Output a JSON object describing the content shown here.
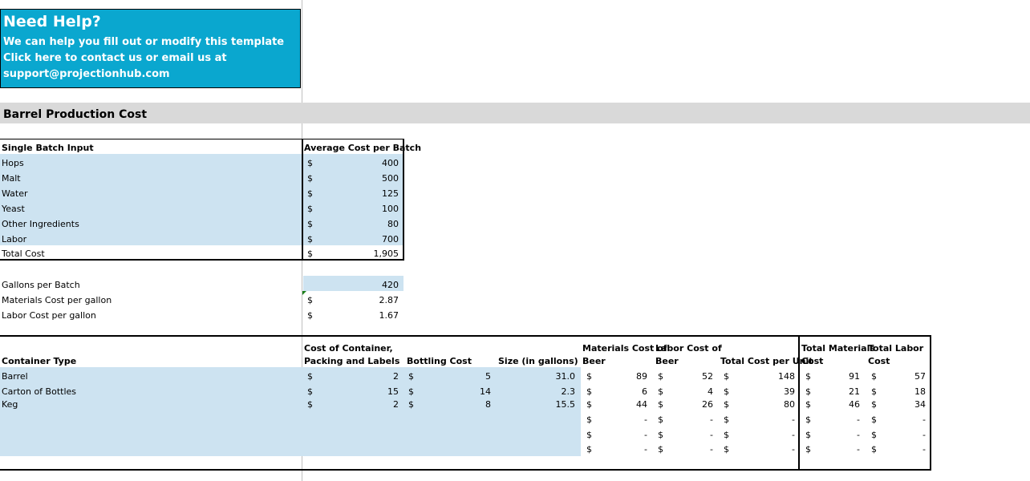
{
  "help": {
    "title": "Need Help?",
    "line1": "We can help you fill out or modify this template",
    "line2": "Click here to contact us or email us at",
    "line3": "support@projectionhub.com"
  },
  "section_title": "Barrel Production Cost",
  "batch": {
    "header_input": "Single Batch Input",
    "header_cost": "Average Cost per Batch",
    "rows": [
      {
        "label": "Hops",
        "cur": "$",
        "value": "400"
      },
      {
        "label": "Malt",
        "cur": "$",
        "value": "500"
      },
      {
        "label": "Water",
        "cur": "$",
        "value": "125"
      },
      {
        "label": "Yeast",
        "cur": "$",
        "value": "100"
      },
      {
        "label": "Other Ingredients",
        "cur": "$",
        "value": "80"
      },
      {
        "label": "Labor",
        "cur": "$",
        "value": "700"
      }
    ],
    "total": {
      "label": "Total Cost",
      "cur": "$",
      "value": "1,905"
    }
  },
  "gallons": {
    "gallons_label": "Gallons per Batch",
    "gallons_value": "420",
    "materials_label": "Materials Cost per gallon",
    "materials_cur": "$",
    "materials_value": "2.87",
    "labor_label": "Labor Cost per gallon",
    "labor_cur": "$",
    "labor_value": "1.67"
  },
  "containers": {
    "headers": {
      "type": "Container Type",
      "cost_line1": "Cost of Container,",
      "cost_line2": "Packing and Labels",
      "bottling": "Bottling Cost",
      "size": "Size (in gallons)",
      "materials_line1": "Materials Cost of",
      "materials_line2": "Beer",
      "labor_line1": "Labor Cost of",
      "labor_line2": "Beer",
      "total_unit": "Total Cost per Unit",
      "total_mat_line1": "Total Materials",
      "total_mat_line2": "Cost",
      "total_lab_line1": "Total Labor",
      "total_lab_line2": "Cost"
    },
    "rows": [
      {
        "type": "Barrel",
        "cost_cur": "$",
        "cost": "2",
        "bot_cur": "$",
        "bot": "5",
        "size": "31.0",
        "mat_cur": "$",
        "mat": "89",
        "lab_cur": "$",
        "lab": "52",
        "tot_cur": "$",
        "tot": "148",
        "tm_cur": "$",
        "tm": "91",
        "tl_cur": "$",
        "tl": "57"
      },
      {
        "type": "Carton of Bottles",
        "cost_cur": "$",
        "cost": "15",
        "bot_cur": "$",
        "bot": "14",
        "size": "2.3",
        "mat_cur": "$",
        "mat": "6",
        "lab_cur": "$",
        "lab": "4",
        "tot_cur": "$",
        "tot": "39",
        "tm_cur": "$",
        "tm": "21",
        "tl_cur": "$",
        "tl": "18"
      },
      {
        "type": "Keg",
        "cost_cur": "$",
        "cost": "2",
        "bot_cur": "$",
        "bot": "8",
        "size": "15.5",
        "mat_cur": "$",
        "mat": "44",
        "lab_cur": "$",
        "lab": "26",
        "tot_cur": "$",
        "tot": "80",
        "tm_cur": "$",
        "tm": "46",
        "tl_cur": "$",
        "tl": "34"
      },
      {
        "type": "",
        "cost_cur": "",
        "cost": "",
        "bot_cur": "",
        "bot": "",
        "size": "",
        "mat_cur": "$",
        "mat": "-",
        "lab_cur": "$",
        "lab": "-",
        "tot_cur": "$",
        "tot": "-",
        "tm_cur": "$",
        "tm": "-",
        "tl_cur": "$",
        "tl": "-"
      },
      {
        "type": "",
        "cost_cur": "",
        "cost": "",
        "bot_cur": "",
        "bot": "",
        "size": "",
        "mat_cur": "$",
        "mat": "-",
        "lab_cur": "$",
        "lab": "-",
        "tot_cur": "$",
        "tot": "-",
        "tm_cur": "$",
        "tm": "-",
        "tl_cur": "$",
        "tl": "-"
      },
      {
        "type": "",
        "cost_cur": "",
        "cost": "",
        "bot_cur": "",
        "bot": "",
        "size": "",
        "mat_cur": "$",
        "mat": "-",
        "lab_cur": "$",
        "lab": "-",
        "tot_cur": "$",
        "tot": "-",
        "tm_cur": "$",
        "tm": "-",
        "tl_cur": "$",
        "tl": "-"
      }
    ]
  },
  "colors": {
    "help_bg": "#0aa7cf",
    "input_fill": "#cde3f1",
    "section_band": "#d9d9d9"
  }
}
